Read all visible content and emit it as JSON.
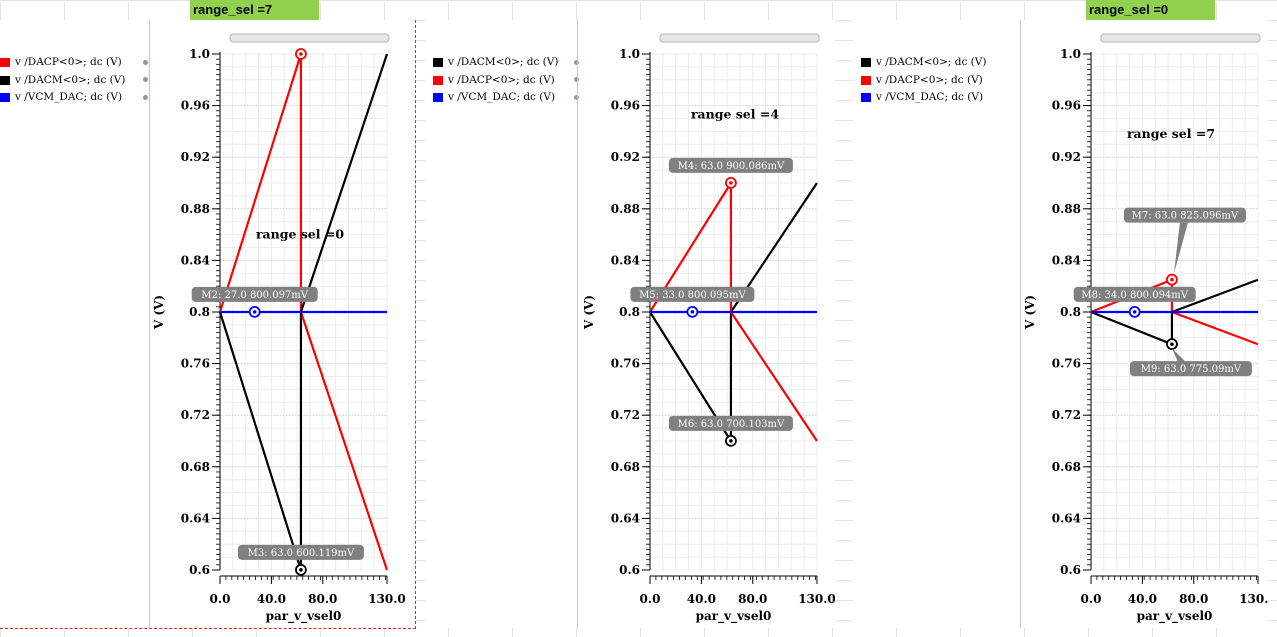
{
  "sheet": {
    "tags": [
      {
        "label": "range_sel =7"
      },
      {
        "label": "range_sel =0"
      }
    ]
  },
  "colors": {
    "red": "#ff0000",
    "black": "#000000",
    "blue": "#0000ff",
    "tag_bg": "#92d050",
    "marker_bg": "#808080"
  },
  "panels": [
    {
      "legend": [
        {
          "label": "v /DACP<0>; dc (V)",
          "color": "#ff0000"
        },
        {
          "label": "v /DACM<0>; dc (V)",
          "color": "#000000"
        },
        {
          "label": "v /VCM_DAC; dc (V)",
          "color": "#0000ff"
        }
      ]
    },
    {
      "legend": [
        {
          "label": "v /DACM<0>; dc (V)",
          "color": "#000000"
        },
        {
          "label": "v /DACP<0>; dc (V)",
          "color": "#ff0000"
        },
        {
          "label": "v /VCM_DAC; dc (V)",
          "color": "#0000ff"
        }
      ]
    },
    {
      "legend": [
        {
          "label": "v /DACM<0>; dc (V)",
          "color": "#000000"
        },
        {
          "label": "v /DACP<0>; dc (V)",
          "color": "#ff0000"
        },
        {
          "label": "v /VCM_DAC; dc (V)",
          "color": "#0000ff"
        }
      ]
    }
  ],
  "chart_data": [
    {
      "type": "line",
      "xlabel": "par_v_vsel0",
      "ylabel": "V (V)",
      "xlim": [
        0,
        130
      ],
      "ylim": [
        0.6,
        1.0
      ],
      "x_ticks": [
        "0.0",
        "40.0",
        "80.0",
        "130.0"
      ],
      "x_tick_values": [
        0,
        40,
        80,
        130
      ],
      "y_ticks": [
        "0.6",
        "0.64",
        "0.68",
        "0.72",
        "0.76",
        "0.8",
        "0.84",
        "0.88",
        "0.92",
        "0.96",
        "1.0"
      ],
      "annotation": "range sel =0",
      "series": [
        {
          "name": "v /DACP<0>; dc (V)",
          "color": "#ff0000",
          "x": [
            0,
            63,
            63,
            130
          ],
          "y": [
            0.8,
            1.0,
            0.8,
            0.6
          ]
        },
        {
          "name": "v /DACM<0>; dc (V)",
          "color": "#000000",
          "x": [
            0,
            63,
            63,
            130
          ],
          "y": [
            0.8,
            0.6,
            0.8,
            1.0
          ]
        },
        {
          "name": "v /VCM_DAC; dc (V)",
          "color": "#0000ff",
          "x": [
            0,
            130
          ],
          "y": [
            0.8,
            0.8
          ]
        }
      ],
      "markers": [
        {
          "label": "M2: 27.0 800.097mV",
          "x": 27.0,
          "y": 0.800097,
          "color": "#0000ff",
          "label_side": "above"
        },
        {
          "label": "M3: 63.0 600.119mV",
          "x": 63.0,
          "y": 0.600119,
          "color": "#000000",
          "label_side": "above"
        },
        {
          "label": "",
          "x": 63.0,
          "y": 1.0,
          "color": "#ff0000",
          "label_side": "none"
        }
      ]
    },
    {
      "type": "line",
      "xlabel": "par_v_vsel0",
      "ylabel": "V (V)",
      "xlim": [
        0,
        130
      ],
      "ylim": [
        0.6,
        1.0
      ],
      "x_ticks": [
        "0.0",
        "40.0",
        "80.0",
        "130.0"
      ],
      "x_tick_values": [
        0,
        40,
        80,
        130
      ],
      "y_ticks": [
        "0.6",
        "0.64",
        "0.68",
        "0.72",
        "0.76",
        "0.8",
        "0.84",
        "0.88",
        "0.92",
        "0.96",
        "1.0"
      ],
      "annotation": "range sel =4",
      "series": [
        {
          "name": "v /DACM<0>; dc (V)",
          "color": "#000000",
          "x": [
            0,
            63,
            63,
            130
          ],
          "y": [
            0.8,
            0.7,
            0.8,
            0.9
          ]
        },
        {
          "name": "v /DACP<0>; dc (V)",
          "color": "#ff0000",
          "x": [
            0,
            63,
            63,
            130
          ],
          "y": [
            0.8,
            0.9,
            0.8,
            0.7
          ]
        },
        {
          "name": "v /VCM_DAC; dc (V)",
          "color": "#0000ff",
          "x": [
            0,
            130
          ],
          "y": [
            0.8,
            0.8
          ]
        }
      ],
      "markers": [
        {
          "label": "M4: 63.0 900.086mV",
          "x": 63.0,
          "y": 0.900086,
          "color": "#ff0000",
          "label_side": "above"
        },
        {
          "label": "M5: 33.0 800.095mV",
          "x": 33.0,
          "y": 0.800095,
          "color": "#0000ff",
          "label_side": "above"
        },
        {
          "label": "M6: 63.0 700.103mV",
          "x": 63.0,
          "y": 0.700103,
          "color": "#000000",
          "label_side": "above"
        }
      ]
    },
    {
      "type": "line",
      "xlabel": "par_v_vsel0",
      "ylabel": "V (V)",
      "xlim": [
        0,
        130
      ],
      "ylim": [
        0.6,
        1.0
      ],
      "x_ticks": [
        "0.0",
        "40.0",
        "80.0",
        "130.0"
      ],
      "x_tick_values": [
        0,
        40,
        80,
        130
      ],
      "y_ticks": [
        "0.6",
        "0.64",
        "0.68",
        "0.72",
        "0.76",
        "0.8",
        "0.84",
        "0.88",
        "0.92",
        "0.96",
        "1.0"
      ],
      "annotation": "range sel =7",
      "series": [
        {
          "name": "v /DACM<0>; dc (V)",
          "color": "#000000",
          "x": [
            0,
            63,
            63,
            130
          ],
          "y": [
            0.8,
            0.775,
            0.8,
            0.825
          ]
        },
        {
          "name": "v /DACP<0>; dc (V)",
          "color": "#ff0000",
          "x": [
            0,
            63,
            63,
            130
          ],
          "y": [
            0.8,
            0.825,
            0.8,
            0.775
          ]
        },
        {
          "name": "v /VCM_DAC; dc (V)",
          "color": "#0000ff",
          "x": [
            0,
            130
          ],
          "y": [
            0.8,
            0.8
          ]
        }
      ],
      "markers": [
        {
          "label": "M7: 63.0 825.096mV",
          "x": 63.0,
          "y": 0.825096,
          "color": "#ff0000",
          "label_side": "above-far"
        },
        {
          "label": "M8: 34.0 800.094mV",
          "x": 34.0,
          "y": 0.800094,
          "color": "#0000ff",
          "label_side": "above"
        },
        {
          "label": "M9: 63.0 775.09mV",
          "x": 63.0,
          "y": 0.77509,
          "color": "#000000",
          "label_side": "below"
        }
      ]
    }
  ]
}
